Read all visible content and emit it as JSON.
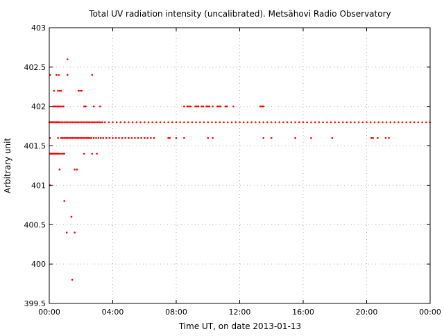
{
  "chart_data": {
    "type": "scatter",
    "title": "Total UV radiation intensity (uncalibrated). Metsähovi Radio Observatory",
    "xlabel": "Time UT, on date 2013-01-13",
    "ylabel": "Arbitrary unit",
    "xlim": [
      "00:00",
      "24:00"
    ],
    "ylim": [
      399.5,
      403
    ],
    "x_ticks": [
      "00:00",
      "04:00",
      "08:00",
      "12:00",
      "16:00",
      "20:00",
      "00:00"
    ],
    "y_ticks": [
      "399.5",
      "400",
      "400.5",
      "401",
      "401.5",
      "402",
      "402.5",
      "403"
    ],
    "grid": true,
    "legend": "none",
    "marker_color": "#ff0000",
    "series": [
      {
        "points": [
          [
            "00:00",
            401.8
          ],
          [
            "00:03",
            401.8
          ],
          [
            "00:05",
            401.8
          ],
          [
            "00:08",
            401.8
          ],
          [
            "00:10",
            401.8
          ],
          [
            "00:13",
            401.8
          ],
          [
            "00:15",
            401.8
          ],
          [
            "00:18",
            401.8
          ],
          [
            "00:21",
            401.8
          ],
          [
            "00:24",
            401.8
          ],
          [
            "00:27",
            401.8
          ],
          [
            "00:30",
            401.8
          ],
          [
            "00:33",
            401.8
          ],
          [
            "00:36",
            401.8
          ],
          [
            "00:39",
            401.8
          ],
          [
            "00:45",
            401.8
          ],
          [
            "00:51",
            401.8
          ],
          [
            "00:57",
            401.8
          ],
          [
            "01:03",
            401.8
          ],
          [
            "01:09",
            401.8
          ],
          [
            "01:15",
            401.8
          ],
          [
            "01:21",
            401.8
          ],
          [
            "01:27",
            401.8
          ],
          [
            "01:33",
            401.8
          ],
          [
            "01:39",
            401.8
          ],
          [
            "01:45",
            401.8
          ],
          [
            "01:51",
            401.8
          ],
          [
            "01:57",
            401.8
          ],
          [
            "02:03",
            401.8
          ],
          [
            "02:09",
            401.8
          ],
          [
            "02:15",
            401.8
          ],
          [
            "02:21",
            401.8
          ],
          [
            "02:27",
            401.8
          ],
          [
            "02:33",
            401.8
          ],
          [
            "02:39",
            401.8
          ],
          [
            "02:45",
            401.8
          ],
          [
            "02:51",
            401.8
          ],
          [
            "02:57",
            401.8
          ],
          [
            "03:03",
            401.8
          ],
          [
            "03:09",
            401.8
          ],
          [
            "03:15",
            401.8
          ],
          [
            "03:21",
            401.8
          ],
          [
            "03:30",
            401.8
          ],
          [
            "03:45",
            401.8
          ],
          [
            "04:00",
            401.8
          ],
          [
            "04:15",
            401.8
          ],
          [
            "04:30",
            401.8
          ],
          [
            "04:45",
            401.8
          ],
          [
            "05:00",
            401.8
          ],
          [
            "05:15",
            401.8
          ],
          [
            "05:30",
            401.8
          ],
          [
            "05:45",
            401.8
          ],
          [
            "06:00",
            401.8
          ],
          [
            "06:15",
            401.8
          ],
          [
            "06:30",
            401.8
          ],
          [
            "06:45",
            401.8
          ],
          [
            "07:00",
            401.8
          ],
          [
            "07:15",
            401.8
          ],
          [
            "07:30",
            401.8
          ],
          [
            "07:45",
            401.8
          ],
          [
            "08:00",
            401.8
          ],
          [
            "08:15",
            401.8
          ],
          [
            "08:30",
            401.8
          ],
          [
            "08:45",
            401.8
          ],
          [
            "09:00",
            401.8
          ],
          [
            "09:15",
            401.8
          ],
          [
            "09:30",
            401.8
          ],
          [
            "09:45",
            401.8
          ],
          [
            "10:00",
            401.8
          ],
          [
            "10:15",
            401.8
          ],
          [
            "10:30",
            401.8
          ],
          [
            "10:45",
            401.8
          ],
          [
            "11:00",
            401.8
          ],
          [
            "11:15",
            401.8
          ],
          [
            "11:30",
            401.8
          ],
          [
            "11:45",
            401.8
          ],
          [
            "12:00",
            401.8
          ],
          [
            "12:15",
            401.8
          ],
          [
            "12:30",
            401.8
          ],
          [
            "12:45",
            401.8
          ],
          [
            "13:00",
            401.8
          ],
          [
            "13:15",
            401.8
          ],
          [
            "13:30",
            401.8
          ],
          [
            "13:45",
            401.8
          ],
          [
            "14:00",
            401.8
          ],
          [
            "14:15",
            401.8
          ],
          [
            "14:30",
            401.8
          ],
          [
            "14:45",
            401.8
          ],
          [
            "15:00",
            401.8
          ],
          [
            "15:15",
            401.8
          ],
          [
            "15:30",
            401.8
          ],
          [
            "15:45",
            401.8
          ],
          [
            "16:00",
            401.8
          ],
          [
            "16:15",
            401.8
          ],
          [
            "16:30",
            401.8
          ],
          [
            "16:45",
            401.8
          ],
          [
            "17:00",
            401.8
          ],
          [
            "17:15",
            401.8
          ],
          [
            "17:30",
            401.8
          ],
          [
            "17:45",
            401.8
          ],
          [
            "18:00",
            401.8
          ],
          [
            "18:15",
            401.8
          ],
          [
            "18:30",
            401.8
          ],
          [
            "18:45",
            401.8
          ],
          [
            "19:00",
            401.8
          ],
          [
            "19:15",
            401.8
          ],
          [
            "19:30",
            401.8
          ],
          [
            "19:45",
            401.8
          ],
          [
            "20:00",
            401.8
          ],
          [
            "20:15",
            401.8
          ],
          [
            "20:30",
            401.8
          ],
          [
            "20:45",
            401.8
          ],
          [
            "21:00",
            401.8
          ],
          [
            "21:15",
            401.8
          ],
          [
            "21:30",
            401.8
          ],
          [
            "21:45",
            401.8
          ],
          [
            "22:00",
            401.8
          ],
          [
            "22:15",
            401.8
          ],
          [
            "22:30",
            401.8
          ],
          [
            "22:45",
            401.8
          ],
          [
            "23:00",
            401.8
          ],
          [
            "23:15",
            401.8
          ],
          [
            "23:30",
            401.8
          ],
          [
            "23:45",
            401.8
          ],
          [
            "23:59",
            401.8
          ],
          [
            "00:03",
            401.4
          ],
          [
            "00:06",
            401.4
          ],
          [
            "00:09",
            401.4
          ],
          [
            "00:12",
            401.4
          ],
          [
            "00:15",
            401.4
          ],
          [
            "00:18",
            401.4
          ],
          [
            "00:21",
            401.4
          ],
          [
            "00:24",
            401.4
          ],
          [
            "00:27",
            401.4
          ],
          [
            "00:30",
            401.4
          ],
          [
            "00:33",
            401.4
          ],
          [
            "00:36",
            401.4
          ],
          [
            "00:42",
            401.4
          ],
          [
            "00:48",
            401.4
          ],
          [
            "00:54",
            401.4
          ],
          [
            "00:57",
            401.4
          ],
          [
            "02:12",
            401.4
          ],
          [
            "02:42",
            401.4
          ],
          [
            "03:00",
            401.4
          ],
          [
            "00:03",
            401.6
          ],
          [
            "00:33",
            401.6
          ],
          [
            "00:45",
            401.6
          ],
          [
            "00:51",
            401.6
          ],
          [
            "00:57",
            401.6
          ],
          [
            "01:03",
            401.6
          ],
          [
            "01:09",
            401.6
          ],
          [
            "01:15",
            401.6
          ],
          [
            "01:21",
            401.6
          ],
          [
            "01:27",
            401.6
          ],
          [
            "01:33",
            401.6
          ],
          [
            "01:39",
            401.6
          ],
          [
            "01:45",
            401.6
          ],
          [
            "01:51",
            401.6
          ],
          [
            "01:57",
            401.6
          ],
          [
            "02:03",
            401.6
          ],
          [
            "02:09",
            401.6
          ],
          [
            "02:15",
            401.6
          ],
          [
            "02:21",
            401.6
          ],
          [
            "02:27",
            401.6
          ],
          [
            "02:33",
            401.6
          ],
          [
            "02:39",
            401.6
          ],
          [
            "02:48",
            401.6
          ],
          [
            "02:57",
            401.6
          ],
          [
            "03:06",
            401.6
          ],
          [
            "03:15",
            401.6
          ],
          [
            "03:24",
            401.6
          ],
          [
            "03:36",
            401.6
          ],
          [
            "03:48",
            401.6
          ],
          [
            "04:00",
            401.6
          ],
          [
            "04:12",
            401.6
          ],
          [
            "04:24",
            401.6
          ],
          [
            "04:36",
            401.6
          ],
          [
            "04:48",
            401.6
          ],
          [
            "05:00",
            401.6
          ],
          [
            "05:12",
            401.6
          ],
          [
            "05:24",
            401.6
          ],
          [
            "05:36",
            401.6
          ],
          [
            "05:48",
            401.6
          ],
          [
            "06:00",
            401.6
          ],
          [
            "06:12",
            401.6
          ],
          [
            "06:24",
            401.6
          ],
          [
            "06:36",
            401.6
          ],
          [
            "07:30",
            401.6
          ],
          [
            "07:36",
            401.6
          ],
          [
            "08:00",
            401.6
          ],
          [
            "08:30",
            401.6
          ],
          [
            "10:00",
            401.6
          ],
          [
            "10:18",
            401.6
          ],
          [
            "13:30",
            401.6
          ],
          [
            "14:00",
            401.6
          ],
          [
            "15:30",
            401.6
          ],
          [
            "16:30",
            401.6
          ],
          [
            "17:50",
            401.6
          ],
          [
            "20:18",
            401.6
          ],
          [
            "20:24",
            401.6
          ],
          [
            "20:42",
            401.6
          ],
          [
            "21:12",
            401.6
          ],
          [
            "21:24",
            401.6
          ],
          [
            "00:15",
            402.0
          ],
          [
            "00:18",
            402.0
          ],
          [
            "00:24",
            402.0
          ],
          [
            "00:30",
            402.0
          ],
          [
            "00:36",
            402.0
          ],
          [
            "00:42",
            402.0
          ],
          [
            "00:48",
            402.0
          ],
          [
            "00:54",
            402.0
          ],
          [
            "02:12",
            402.0
          ],
          [
            "02:18",
            402.0
          ],
          [
            "02:48",
            402.0
          ],
          [
            "03:12",
            402.0
          ],
          [
            "08:30",
            402.0
          ],
          [
            "08:42",
            402.0
          ],
          [
            "08:48",
            402.0
          ],
          [
            "08:54",
            402.0
          ],
          [
            "09:12",
            402.0
          ],
          [
            "09:18",
            402.0
          ],
          [
            "09:24",
            402.0
          ],
          [
            "09:36",
            402.0
          ],
          [
            "09:42",
            402.0
          ],
          [
            "09:54",
            402.0
          ],
          [
            "10:00",
            402.0
          ],
          [
            "10:06",
            402.0
          ],
          [
            "10:18",
            402.0
          ],
          [
            "10:36",
            402.0
          ],
          [
            "10:42",
            402.0
          ],
          [
            "10:48",
            402.0
          ],
          [
            "11:06",
            402.0
          ],
          [
            "11:12",
            402.0
          ],
          [
            "11:36",
            402.0
          ],
          [
            "13:18",
            402.0
          ],
          [
            "13:24",
            402.0
          ],
          [
            "13:27",
            402.0
          ],
          [
            "13:30",
            402.0
          ],
          [
            "00:03",
            402.4
          ],
          [
            "00:27",
            402.4
          ],
          [
            "00:36",
            402.4
          ],
          [
            "01:09",
            402.4
          ],
          [
            "02:42",
            402.4
          ],
          [
            "01:09",
            402.6
          ],
          [
            "00:18",
            402.2
          ],
          [
            "00:33",
            402.2
          ],
          [
            "00:39",
            402.2
          ],
          [
            "00:45",
            402.2
          ],
          [
            "01:51",
            402.2
          ],
          [
            "01:57",
            402.2
          ],
          [
            "02:03",
            402.2
          ],
          [
            "01:36",
            401.2
          ],
          [
            "01:45",
            401.2
          ],
          [
            "00:39",
            401.2
          ],
          [
            "00:03",
            401.0
          ],
          [
            "00:57",
            400.8
          ],
          [
            "01:24",
            400.6
          ],
          [
            "01:06",
            400.4
          ],
          [
            "01:36",
            400.4
          ],
          [
            "01:27",
            399.8
          ]
        ]
      }
    ]
  }
}
